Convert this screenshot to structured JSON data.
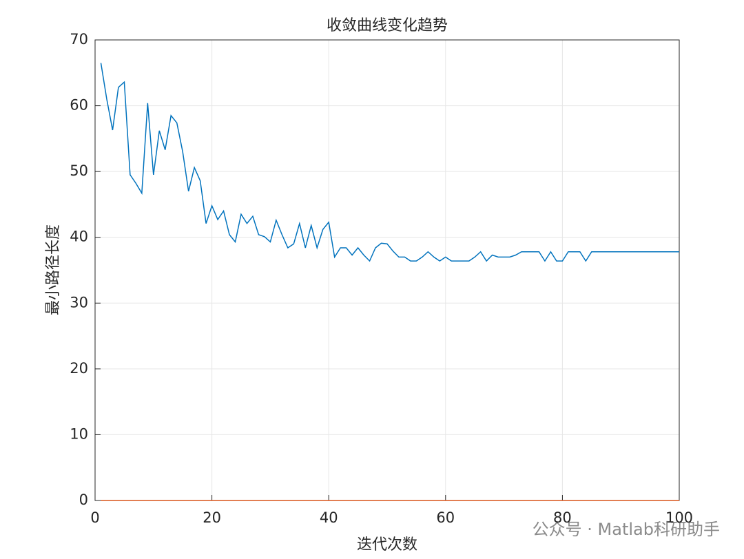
{
  "chart_data": {
    "type": "line",
    "title": "收敛曲线变化趋势",
    "x_label": "迭代次数",
    "y_label": "最小路径长度",
    "x": [
      1,
      2,
      3,
      4,
      5,
      6,
      7,
      8,
      9,
      10,
      11,
      12,
      13,
      14,
      15,
      16,
      17,
      18,
      19,
      20,
      21,
      22,
      23,
      24,
      25,
      26,
      27,
      28,
      29,
      30,
      31,
      32,
      33,
      34,
      35,
      36,
      37,
      38,
      39,
      40,
      41,
      42,
      43,
      44,
      45,
      46,
      47,
      48,
      49,
      50,
      51,
      52,
      53,
      54,
      55,
      56,
      57,
      58,
      59,
      60,
      61,
      62,
      63,
      64,
      65,
      66,
      67,
      68,
      69,
      70,
      71,
      72,
      73,
      74,
      75,
      76,
      77,
      78,
      79,
      80,
      81,
      82,
      83,
      84,
      85,
      86,
      87,
      88,
      89,
      90,
      91,
      92,
      93,
      94,
      95,
      96,
      97,
      98,
      99,
      100
    ],
    "series": [
      {
        "color": "#0072BD",
        "values": [
          66.5,
          61,
          56.3,
          62.8,
          63.6,
          49.5,
          48.2,
          46.7,
          60.4,
          49.5,
          56.2,
          53.3,
          58.5,
          57.4,
          53,
          47,
          50.6,
          48.6,
          42.1,
          44.8,
          42.7,
          44,
          40.4,
          39.3,
          43.5,
          42.1,
          43.2,
          40.4,
          40.1,
          39.3,
          42.6,
          40.4,
          38.4,
          39,
          42.1,
          38.4,
          41.8,
          38.4,
          41.2,
          42.3,
          37,
          38.4,
          38.4,
          37.3,
          38.4,
          37.3,
          36.4,
          38.4,
          39.1,
          39,
          37.9,
          37,
          37,
          36.4,
          36.4,
          37,
          37.8,
          37,
          36.4,
          37,
          36.4,
          36.4,
          36.4,
          36.4,
          37,
          37.8,
          36.4,
          37.3,
          37,
          37,
          37,
          37.3,
          37.8,
          37.8,
          37.8,
          37.8,
          36.4,
          37.8,
          36.4,
          36.4,
          37.8,
          37.8,
          37.8,
          36.4,
          37.8,
          37.8,
          37.8,
          37.8,
          37.8,
          37.8,
          37.8,
          37.8,
          37.8,
          37.8,
          37.8,
          37.8,
          37.8,
          37.8,
          37.8,
          37.8
        ]
      },
      {
        "color": "#D95319",
        "values": [
          0,
          0,
          0,
          0,
          0,
          0,
          0,
          0,
          0,
          0,
          0,
          0,
          0,
          0,
          0,
          0,
          0,
          0,
          0,
          0,
          0,
          0,
          0,
          0,
          0,
          0,
          0,
          0,
          0,
          0,
          0,
          0,
          0,
          0,
          0,
          0,
          0,
          0,
          0,
          0,
          0,
          0,
          0,
          0,
          0,
          0,
          0,
          0,
          0,
          0,
          0,
          0,
          0,
          0,
          0,
          0,
          0,
          0,
          0,
          0,
          0,
          0,
          0,
          0,
          0,
          0,
          0,
          0,
          0,
          0,
          0,
          0,
          0,
          0,
          0,
          0,
          0,
          0,
          0,
          0,
          0,
          0,
          0,
          0,
          0,
          0,
          0,
          0,
          0,
          0,
          0,
          0,
          0,
          0,
          0,
          0,
          0,
          0,
          0,
          0
        ]
      }
    ],
    "xlim": [
      0,
      100
    ],
    "ylim": [
      0,
      70
    ],
    "xticks": [
      0,
      20,
      40,
      60,
      80,
      100
    ],
    "yticks": [
      0,
      10,
      20,
      30,
      40,
      50,
      60,
      70
    ],
    "grid": true,
    "watermark": "公众号 · Matlab科研助手"
  }
}
